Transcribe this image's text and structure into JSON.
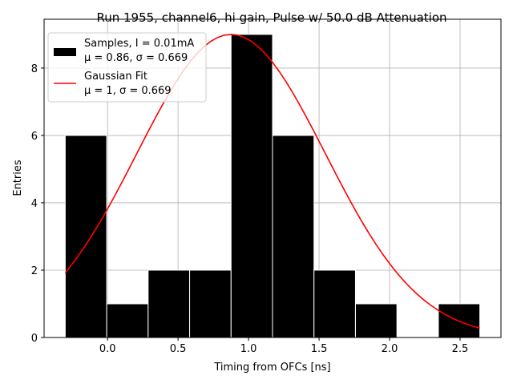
{
  "chart_data": {
    "type": "bar",
    "title": "Run 1955, channel6, hi gain, Pulse w/ 50.0 dB Attenuation",
    "xlabel": "Timing from OFCs [ns]",
    "ylabel": "Entries",
    "xlim": [
      -0.45,
      2.79
    ],
    "ylim": [
      0,
      9.45
    ],
    "grid": true,
    "legend_position": "top-left",
    "xticks": [
      0.0,
      0.5,
      1.0,
      1.5,
      2.0,
      2.5
    ],
    "xtick_labels": [
      "0.0",
      "0.5",
      "1.0",
      "1.5",
      "2.0",
      "2.5"
    ],
    "yticks": [
      0,
      2,
      4,
      6,
      8
    ],
    "ytick_labels": [
      "0",
      "2",
      "4",
      "6",
      "8"
    ],
    "histogram": {
      "name_line1": "Samples, I = 0.01mA",
      "name_line2": "μ = 0.86, σ = 0.669",
      "color": "#000000",
      "edge_color": "#ffffff",
      "bin_edges": [
        -0.3,
        -0.006,
        0.288,
        0.582,
        0.876,
        1.17,
        1.464,
        1.758,
        2.052,
        2.346,
        2.64
      ],
      "counts": [
        6,
        1,
        2,
        2,
        9,
        6,
        2,
        1,
        0,
        1
      ]
    },
    "fit": {
      "name_line1": "Gaussian Fit",
      "name_line2": "μ = 1, σ = 0.669",
      "color": "#ff0000",
      "amplitude": 9.0,
      "mean": 0.876,
      "sigma": 0.669,
      "x_range": [
        -0.3,
        2.64
      ]
    }
  }
}
